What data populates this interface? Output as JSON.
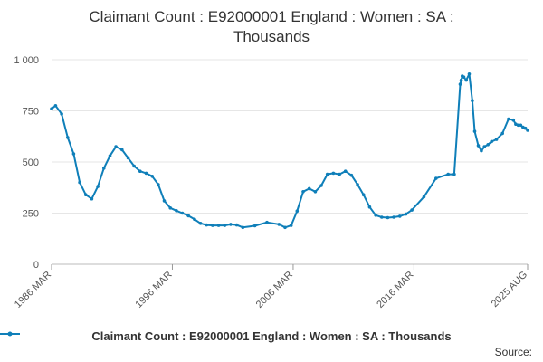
{
  "chart_data": {
    "type": "line",
    "title_lines": [
      "Claimant Count : E92000001 England : Women : SA :",
      "Thousands"
    ],
    "x_tick_labels": [
      "1986 MAR",
      "1996 MAR",
      "2006 MAR",
      "2016 MAR",
      "2025 AUG"
    ],
    "x_tick_years": [
      1986.17,
      1996.17,
      2006.17,
      2016.17,
      2025.58
    ],
    "xlim": [
      1986.17,
      2025.58
    ],
    "y_tick_labels": [
      "0",
      "250",
      "500",
      "750",
      "1 000"
    ],
    "y_tick_values": [
      0,
      250,
      500,
      750,
      1000
    ],
    "ylim": [
      0,
      1000
    ],
    "color": "#0f7fb9",
    "legend_position": "bottom",
    "series": [
      {
        "name": "Claimant Count : E92000001 England : Women : SA : Thousands",
        "x": [
          1986.17,
          1986.5,
          1987.0,
          1987.5,
          1988.0,
          1988.5,
          1989.0,
          1989.5,
          1990.0,
          1990.5,
          1991.0,
          1991.5,
          1992.0,
          1992.5,
          1993.0,
          1993.5,
          1994.0,
          1994.5,
          1995.0,
          1995.5,
          1996.0,
          1996.5,
          1997.0,
          1997.5,
          1998.0,
          1998.5,
          1999.0,
          1999.5,
          2000.0,
          2000.5,
          2001.0,
          2001.5,
          2002.0,
          2003.0,
          2004.0,
          2005.0,
          2005.5,
          2006.0,
          2006.5,
          2007.0,
          2007.5,
          2008.0,
          2008.5,
          2009.0,
          2009.5,
          2010.0,
          2010.5,
          2011.0,
          2011.5,
          2012.0,
          2012.5,
          2013.0,
          2013.5,
          2014.0,
          2014.5,
          2015.0,
          2015.5,
          2016.0,
          2017.0,
          2018.0,
          2019.0,
          2019.5,
          2020.0,
          2020.08,
          2020.17,
          2020.3,
          2020.5,
          2020.75,
          2021.0,
          2021.2,
          2021.5,
          2021.75,
          2022.0,
          2022.3,
          2022.6,
          2023.0,
          2023.5,
          2024.0,
          2024.4,
          2024.6,
          2024.8,
          2025.0,
          2025.2,
          2025.4,
          2025.58
        ],
        "y": [
          760,
          775,
          735,
          620,
          540,
          400,
          340,
          320,
          380,
          470,
          530,
          575,
          560,
          520,
          480,
          455,
          445,
          430,
          390,
          310,
          275,
          262,
          250,
          237,
          220,
          200,
          192,
          190,
          190,
          190,
          195,
          192,
          180,
          188,
          205,
          195,
          180,
          190,
          260,
          355,
          370,
          355,
          385,
          440,
          445,
          440,
          455,
          435,
          390,
          340,
          280,
          240,
          230,
          228,
          230,
          235,
          245,
          265,
          330,
          420,
          440,
          440,
          880,
          900,
          920,
          915,
          900,
          930,
          800,
          650,
          580,
          555,
          575,
          585,
          600,
          610,
          640,
          710,
          705,
          685,
          680,
          680,
          670,
          665,
          655
        ]
      }
    ],
    "source_label": "Source:"
  }
}
